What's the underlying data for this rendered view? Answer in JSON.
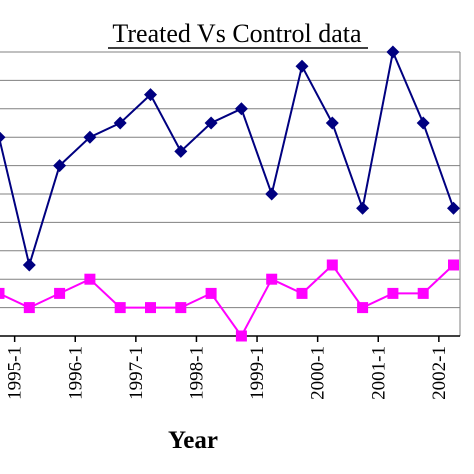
{
  "chart_data": {
    "type": "line",
    "title": "Treated Vs Control data",
    "xlabel": "Year",
    "ylabel": "",
    "x_tick_labels": [
      "1995-1",
      "1996-1",
      "1997-1",
      "1998-1",
      "1999-1",
      "2000-1",
      "2001-1",
      "2002-1"
    ],
    "ylim": [
      0,
      20
    ],
    "grid": true,
    "series": [
      {
        "color": "#000080",
        "marker": "diamond",
        "values": [
          14,
          5,
          12,
          14,
          15,
          17,
          13,
          15,
          16,
          10,
          19,
          15,
          9,
          20,
          15,
          9
        ]
      },
      {
        "color": "#ff00ff",
        "marker": "square",
        "values": [
          3,
          2,
          3,
          4,
          2,
          2,
          2,
          3,
          0,
          4,
          3,
          5,
          2,
          3,
          3,
          5
        ]
      }
    ]
  }
}
